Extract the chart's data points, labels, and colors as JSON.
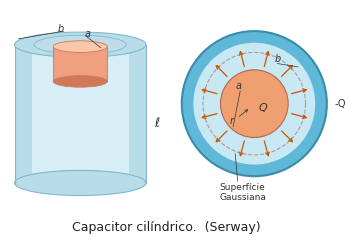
{
  "bg_color": "#ffffff",
  "caption": "Capacitor cilíndrico.  (Serway)",
  "caption_fontsize": 9,
  "outer_cyl_color": "#b8dde8",
  "outer_cyl_light": "#d8eef5",
  "outer_cyl_dark": "#80b8cc",
  "inner_cyl_color": "#f0a080",
  "inner_cyl_highlight": "#f8c8a8",
  "inner_cyl_dark": "#d07858",
  "top_hole_color": "#c0dce8",
  "top_bg_color": "#a8ccd8",
  "cross_outer_color": "#60b8d8",
  "cross_outer_dark": "#3a8aac",
  "cross_inner_color": "#f0a070",
  "cross_dashed_color": "#b09898",
  "cross_bg_color": "#c8e8f4",
  "arrow_color": "#cc5500",
  "label_color": "#333333",
  "label_fontsize": 7,
  "ell_label": "ℓ",
  "Q_label": "Q",
  "negQ_label": "-Q",
  "a_label": "a",
  "b_label": "b",
  "r_label": "r",
  "gauss_label": "Superfície\nGaussiana",
  "n_arrows": 12
}
